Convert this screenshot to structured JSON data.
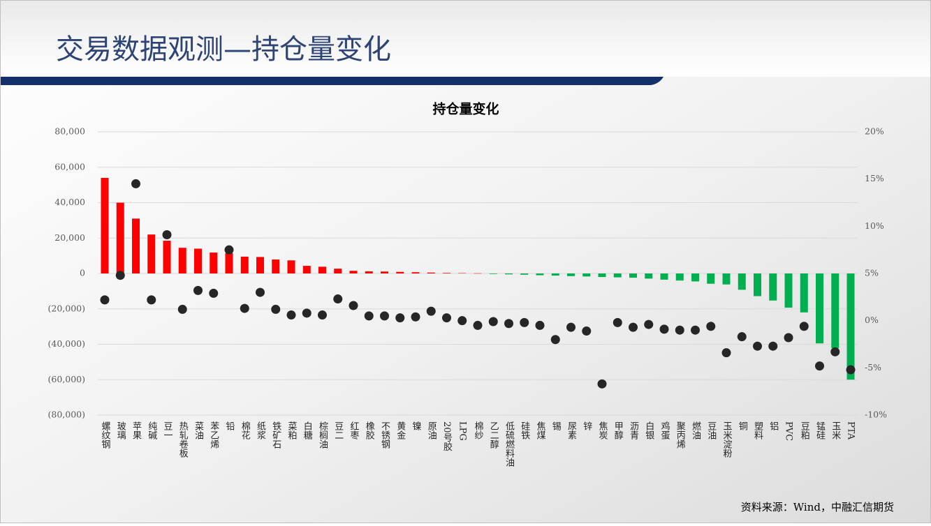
{
  "header": {
    "title": "交易数据观测—持仓量变化"
  },
  "chart_data": {
    "type": "bar",
    "title": "持仓量变化",
    "categories": [
      "螺纹钢",
      "玻璃",
      "苹果",
      "纯碱",
      "豆一",
      "热轧卷板",
      "菜油",
      "苯乙烯",
      "铅",
      "棉花",
      "纸浆",
      "铁矿石",
      "菜粕",
      "白糖",
      "棕榈油",
      "豆二",
      "红枣",
      "橡胶",
      "不锈钢",
      "黄金",
      "镍",
      "原油",
      "20号胶",
      "LPG",
      "棉纱",
      "乙二醇",
      "低硫燃料油",
      "硅铁",
      "焦煤",
      "锡",
      "尿素",
      "锌",
      "焦炭",
      "甲醇",
      "沥青",
      "白银",
      "鸡蛋",
      "聚丙烯",
      "燃油",
      "豆油",
      "玉米淀粉",
      "铜",
      "塑料",
      "铝",
      "PVC",
      "豆粕",
      "锰硅",
      "玉米",
      "PTA"
    ],
    "series": [
      {
        "type": "bar",
        "positive_color": "#ff0000",
        "negative_color": "#00b050",
        "values": [
          54000,
          40000,
          31000,
          22000,
          18500,
          14500,
          14000,
          11800,
          11500,
          9500,
          9300,
          7900,
          7400,
          4300,
          3800,
          2700,
          1500,
          1200,
          1100,
          900,
          700,
          500,
          300,
          200,
          100,
          -300,
          -500,
          -700,
          -1000,
          -1200,
          -1500,
          -1700,
          -2000,
          -2200,
          -2400,
          -2900,
          -3500,
          -4000,
          -4500,
          -5800,
          -6200,
          -9200,
          -12800,
          -15300,
          -19300,
          -22000,
          -39500,
          -42200,
          -60000
        ]
      },
      {
        "type": "scatter",
        "axis": "y2",
        "color": "#262626",
        "values": [
          2.2,
          4.8,
          14.5,
          2.2,
          9.1,
          1.2,
          3.2,
          2.9,
          7.5,
          1.3,
          3.0,
          1.2,
          0.6,
          0.8,
          0.6,
          2.3,
          1.6,
          0.5,
          0.5,
          0.3,
          0.4,
          1.0,
          0.3,
          0.0,
          -0.5,
          -0.1,
          -0.3,
          -0.2,
          -0.5,
          -2.0,
          -0.7,
          -1.1,
          -6.7,
          -0.2,
          -0.7,
          -0.4,
          -0.9,
          -1.0,
          -1.0,
          -0.6,
          -3.4,
          -1.7,
          -2.7,
          -2.7,
          -1.8,
          -0.6,
          -4.8,
          -3.3,
          -5.2
        ]
      }
    ],
    "ylim": [
      -80000,
      80000
    ],
    "yticks": [
      {
        "value": -80000,
        "label": "(80,000)"
      },
      {
        "value": -60000,
        "label": "(60,000)"
      },
      {
        "value": -40000,
        "label": "(40,000)"
      },
      {
        "value": -20000,
        "label": "(20,000)"
      },
      0,
      {
        "value": 20000,
        "label": "20,000"
      },
      {
        "value": 40000,
        "label": "40,000"
      },
      {
        "value": 60000,
        "label": "60,000"
      },
      {
        "value": 80000,
        "label": "80,000"
      }
    ],
    "y2lim": [
      -10,
      20
    ],
    "y2ticks": [
      {
        "value": -10,
        "label": "-10%"
      },
      {
        "value": -5,
        "label": "-5%"
      },
      {
        "value": 0,
        "label": "0%"
      },
      {
        "value": 5,
        "label": "5%"
      },
      {
        "value": 10,
        "label": "10%"
      },
      {
        "value": 15,
        "label": "15%"
      },
      {
        "value": 20,
        "label": "20%"
      }
    ],
    "negative_tick_color": "#e00000",
    "grid": true
  },
  "footer": {
    "source": "资料来源：Wind，中融汇信期货"
  }
}
